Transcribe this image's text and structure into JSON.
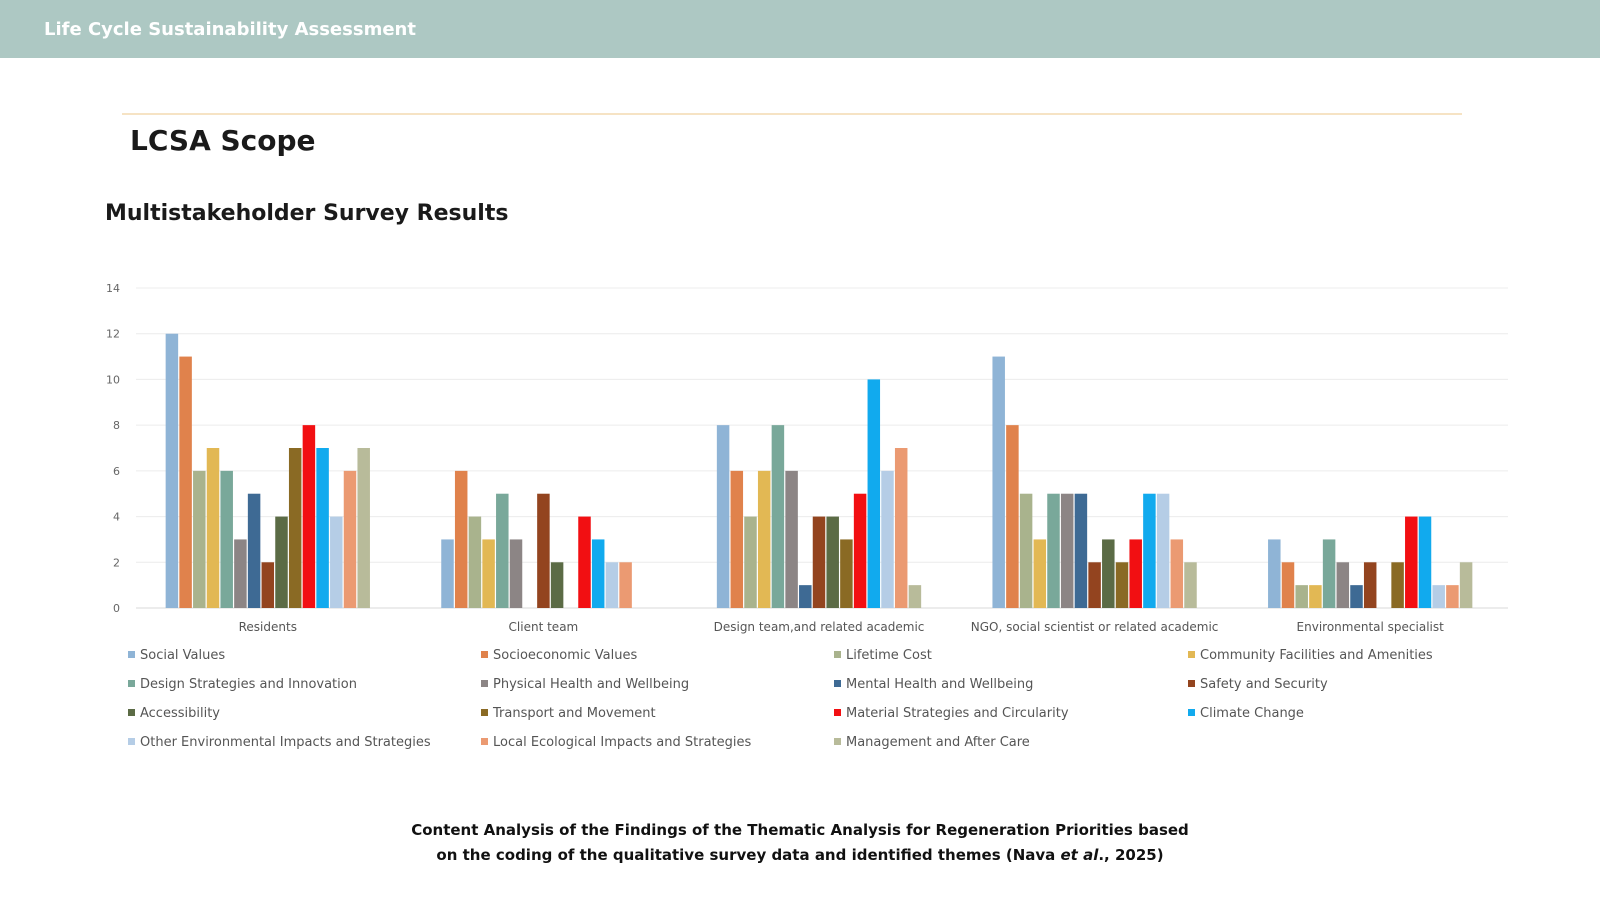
{
  "header": {
    "title": "Life Cycle Sustainability Assessment"
  },
  "slide": {
    "heading": "LCSA Scope",
    "subheading": "Multistakeholder Survey Results",
    "caption_line1": "Content Analysis of the Findings of the Thematic Analysis for Regeneration Priorities based",
    "caption_line2_prefix": "on the coding of the qualitative survey data and identified themes (Nava ",
    "caption_line2_italic": "et al",
    "caption_line2_suffix": "., 2025)"
  },
  "chart_data": {
    "type": "bar",
    "title": "",
    "xlabel": "",
    "ylabel": "",
    "ylim": [
      0,
      14
    ],
    "yticks": [
      0,
      2,
      4,
      6,
      8,
      10,
      12,
      14
    ],
    "grid": true,
    "legend_position": "bottom",
    "categories": [
      "Residents",
      "Client team",
      "Design team,and related academic",
      "NGO, social scientist or related academic",
      "Environmental specialist"
    ],
    "series": [
      {
        "name": "Social Values",
        "color": "#8fb4d6",
        "values": [
          12,
          3,
          8,
          11,
          3
        ]
      },
      {
        "name": "Socioeconomic Values",
        "color": "#e0824c",
        "values": [
          11,
          6,
          6,
          8,
          2
        ]
      },
      {
        "name": "Lifetime Cost",
        "color": "#a9b38d",
        "values": [
          6,
          4,
          4,
          5,
          1
        ]
      },
      {
        "name": "Community Facilities and Amenities",
        "color": "#e2b854",
        "values": [
          7,
          3,
          6,
          3,
          1
        ]
      },
      {
        "name": "Design Strategies and Innovation",
        "color": "#79a89a",
        "values": [
          6,
          5,
          8,
          5,
          3
        ]
      },
      {
        "name": "Physical Health and Wellbeing",
        "color": "#8c8585",
        "values": [
          3,
          3,
          6,
          5,
          2
        ]
      },
      {
        "name": "Mental Health and Wellbeing",
        "color": "#3e6a94",
        "values": [
          5,
          0,
          1,
          5,
          1
        ]
      },
      {
        "name": "Safety and Security",
        "color": "#93441f",
        "values": [
          2,
          5,
          4,
          2,
          2
        ]
      },
      {
        "name": "Accessibility",
        "color": "#5b6b45",
        "values": [
          4,
          2,
          4,
          3,
          0
        ]
      },
      {
        "name": "Transport and Movement",
        "color": "#8a6a24",
        "values": [
          7,
          0,
          3,
          2,
          2
        ]
      },
      {
        "name": "Material Strategies and Circularity",
        "color": "#f20f12",
        "values": [
          8,
          4,
          5,
          3,
          4
        ]
      },
      {
        "name": "Climate Change",
        "color": "#11aaee",
        "values": [
          7,
          3,
          10,
          5,
          4
        ]
      },
      {
        "name": "Other Environmental Impacts and Strategies",
        "color": "#b5cde6",
        "values": [
          4,
          2,
          6,
          5,
          1
        ]
      },
      {
        "name": "Local Ecological Impacts and Strategies",
        "color": "#eb9a72",
        "values": [
          6,
          2,
          7,
          3,
          1
        ]
      },
      {
        "name": "Management and After Care",
        "color": "#b8bb9a",
        "values": [
          7,
          0,
          1,
          2,
          2
        ]
      }
    ]
  }
}
